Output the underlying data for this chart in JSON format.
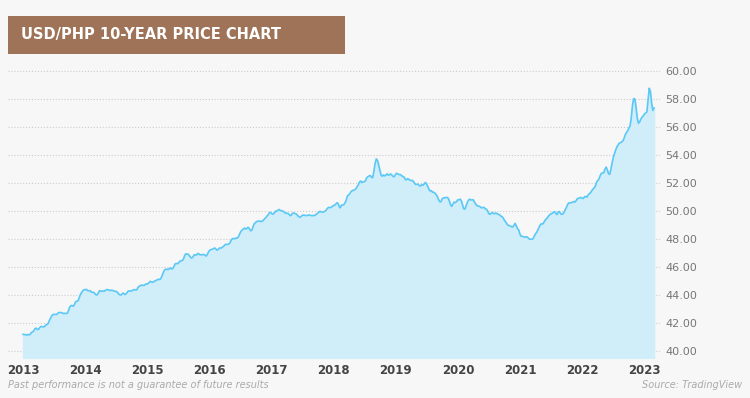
{
  "title": "USD/PHP 10-YEAR PRICE CHART",
  "title_bg_color": "#9e7358",
  "title_text_color": "#ffffff",
  "line_color": "#5bc8f5",
  "fill_color": "#d6f0fb",
  "bg_color": "#f7f7f7",
  "dot_color": "#cccccc",
  "grid_color": "#dddddd",
  "yticks": [
    40.0,
    42.0,
    44.0,
    46.0,
    48.0,
    50.0,
    52.0,
    54.0,
    56.0,
    58.0,
    60.0
  ],
  "xtick_labels": [
    "2013",
    "2014",
    "2015",
    "2016",
    "2017",
    "2018",
    "2019",
    "2020",
    "2021",
    "2022",
    "2023"
  ],
  "xtick_positions": [
    2013,
    2014,
    2015,
    2016,
    2017,
    2018,
    2019,
    2020,
    2021,
    2022,
    2023
  ],
  "footer_left": "Past performance is not a guarantee of future results",
  "footer_right": "Source: TradingView",
  "ymin": 39.5,
  "ymax": 60.8,
  "xmin": 2012.75,
  "xmax": 2023.25
}
